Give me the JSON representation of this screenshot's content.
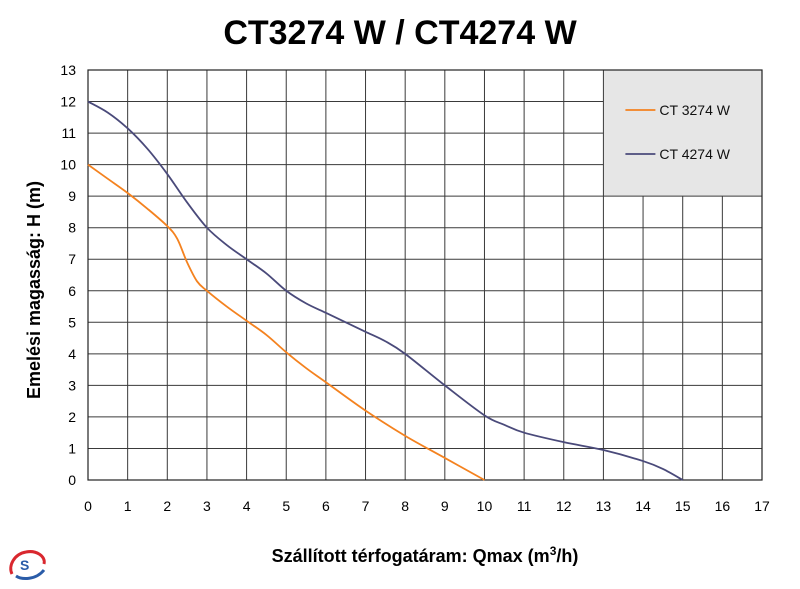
{
  "chart_data": {
    "type": "line",
    "title": "CT3274 W / CT4274 W",
    "xlabel": "Szállított térfogatáram: Qmax (m",
    "xlabel_sup": "3",
    "xlabel_tail": "/h)",
    "ylabel": "Emelési magasság: H (m)",
    "xlim": [
      0,
      17
    ],
    "ylim": [
      0,
      13
    ],
    "x_ticks": [
      0,
      1,
      2,
      3,
      4,
      5,
      6,
      7,
      8,
      9,
      10,
      11,
      12,
      13,
      14,
      15,
      16,
      17
    ],
    "y_ticks": [
      0,
      1,
      2,
      3,
      4,
      5,
      6,
      7,
      8,
      9,
      10,
      11,
      12,
      13
    ],
    "grid": true,
    "legend_position": "top-right",
    "series": [
      {
        "name": "CT 3274 W",
        "color": "#f4821f",
        "x": [
          0,
          0.5,
          1,
          1.5,
          2,
          2.25,
          2.5,
          2.75,
          3,
          3.5,
          4,
          4.5,
          5,
          5.5,
          6,
          7,
          8,
          9,
          10
        ],
        "y": [
          10,
          9.55,
          9.1,
          8.6,
          8.05,
          7.65,
          6.9,
          6.3,
          6.0,
          5.5,
          5.05,
          4.6,
          4.05,
          3.55,
          3.1,
          2.2,
          1.4,
          0.7,
          0
        ]
      },
      {
        "name": "CT 4274 W",
        "color": "#4a4a7a",
        "x": [
          0,
          0.5,
          1,
          1.5,
          2,
          2.5,
          3,
          3.5,
          4,
          4.5,
          5,
          5.5,
          6,
          6.5,
          7,
          7.5,
          8,
          9,
          10,
          10.5,
          11,
          12,
          13,
          14,
          14.5,
          15
        ],
        "y": [
          12,
          11.65,
          11.15,
          10.5,
          9.7,
          8.8,
          8.0,
          7.45,
          7.0,
          6.55,
          6.0,
          5.6,
          5.3,
          5.0,
          4.7,
          4.4,
          4.0,
          3.0,
          2.05,
          1.75,
          1.5,
          1.2,
          0.95,
          0.6,
          0.35,
          0
        ]
      }
    ],
    "colors": {
      "plot_background": "#ffffff",
      "legend_background": "#e6e6e6",
      "grid": "#3a3a3a"
    }
  },
  "logo": {
    "icon": "brand-logo-icon"
  }
}
